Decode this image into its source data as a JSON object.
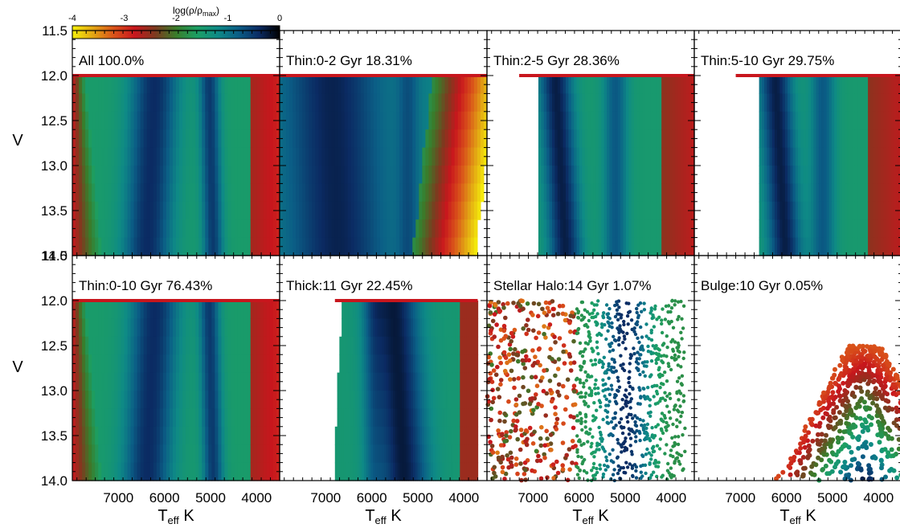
{
  "colorbar": {
    "label": "log(ρ/ρ",
    "label_sub": "max",
    "label_close": ")",
    "range": [
      -4,
      0
    ],
    "ticks": [
      "-4",
      "-3",
      "-2",
      "-1",
      "0"
    ],
    "colors": [
      "#f5ef0a",
      "#e2a514",
      "#d9531a",
      "#c8161d",
      "#7d3a1f",
      "#3a7c2a",
      "#1c9f63",
      "#0e8a86",
      "#0b5e86",
      "#0b2b63",
      "#000000"
    ]
  },
  "chart_data": {
    "type": "heatmap",
    "x_label": "T",
    "x_label_sub": "eff",
    "x_label_unit": "K",
    "y_label": "V",
    "x_ticks": [
      "7000",
      "6000",
      "5000",
      "4000"
    ],
    "y_ticks": [
      "11.5",
      "12.0",
      "12.5",
      "13.0",
      "13.5",
      "14.0"
    ],
    "xlim": [
      8000,
      3500
    ],
    "ylim": [
      14.0,
      11.5
    ],
    "panels": [
      {
        "title": "All 100.0%",
        "kind": "all",
        "teff_range": [
          8000,
          3500
        ]
      },
      {
        "title": "Thin:0-2 Gyr 18.31%",
        "kind": "young",
        "teff_range": [
          8000,
          3500
        ]
      },
      {
        "title": "Thin:2-5 Gyr 28.36%",
        "kind": "mid",
        "teff_range": [
          7300,
          3500
        ]
      },
      {
        "title": "Thin:5-10 Gyr 29.75%",
        "kind": "old",
        "teff_range": [
          7100,
          3500
        ]
      },
      {
        "title": "Thin:0-10 Gyr 76.43%",
        "kind": "all",
        "teff_range": [
          8000,
          3500
        ]
      },
      {
        "title": "Thick:11 Gyr 22.45%",
        "kind": "thick",
        "teff_range": [
          6800,
          3700
        ]
      },
      {
        "title": "Stellar Halo:14 Gyr  1.07%",
        "kind": "halo",
        "teff_range": [
          8000,
          3700
        ]
      },
      {
        "title": "Bulge:10 Gyr  0.05%",
        "kind": "bulge",
        "teff_range": [
          5000,
          3500
        ]
      }
    ]
  }
}
